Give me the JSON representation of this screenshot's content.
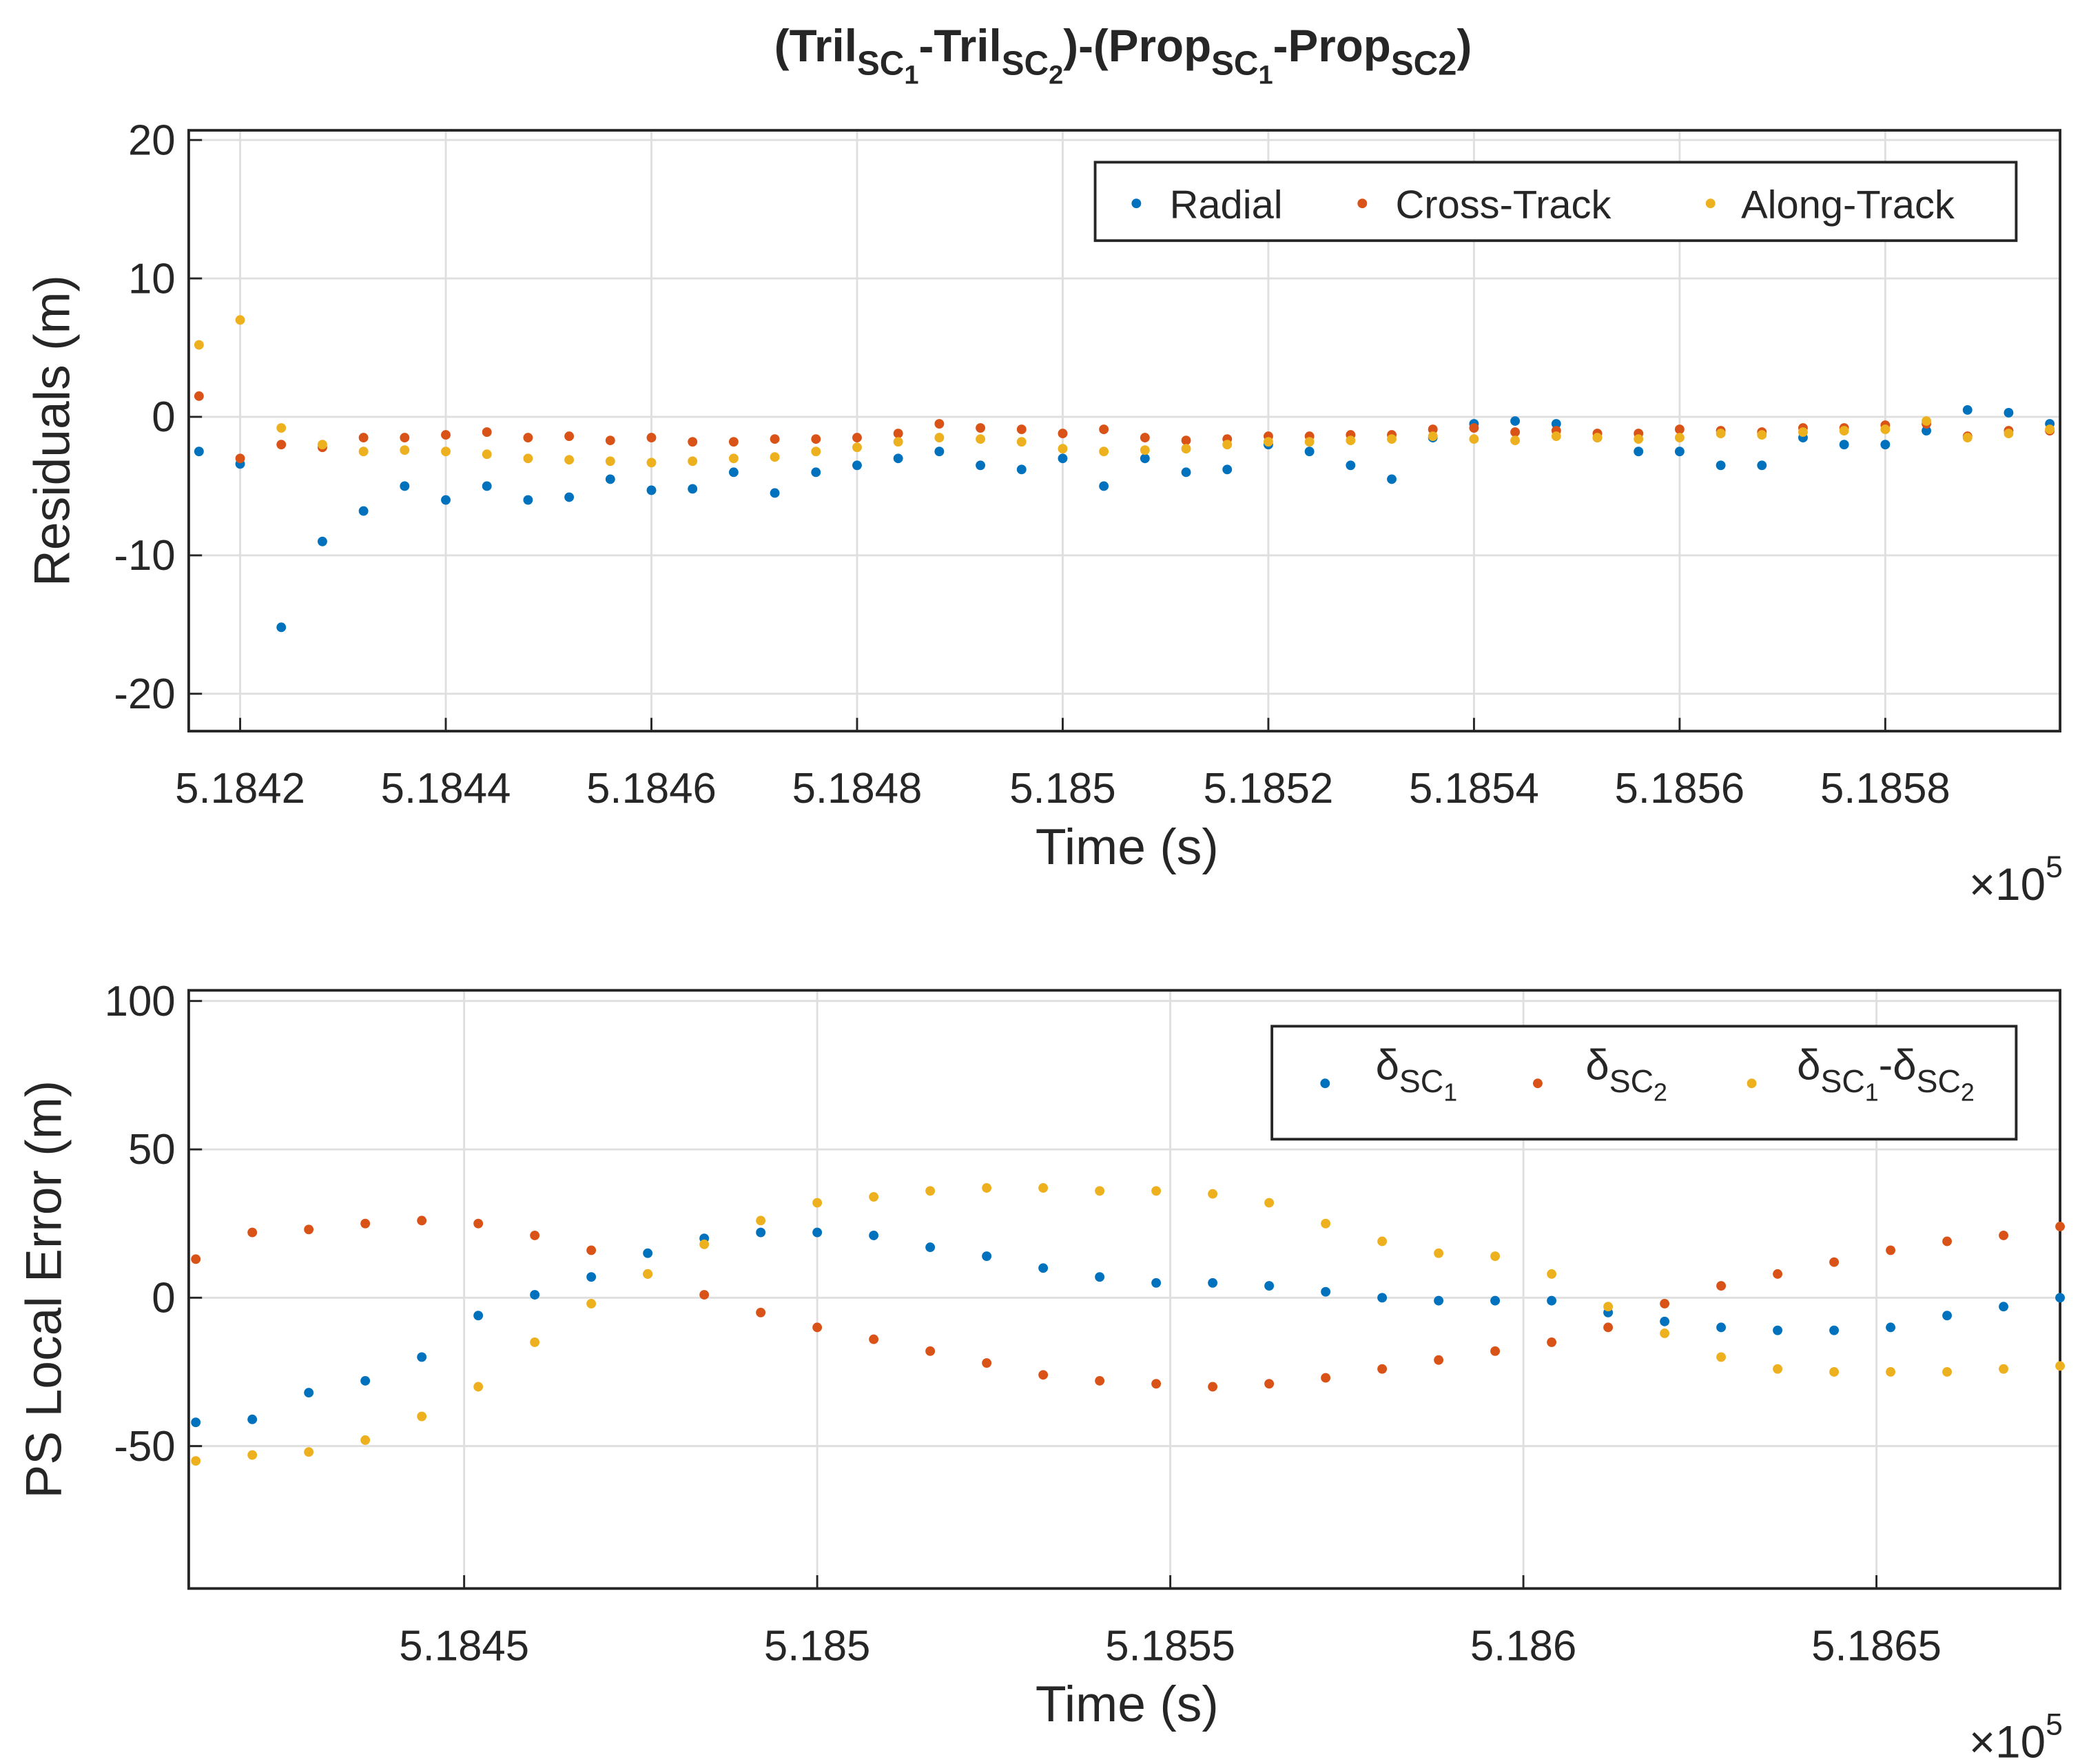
{
  "chart_data": [
    {
      "type": "scatter",
      "title": [
        "(Tril",
        "SC",
        "1",
        "-Tril",
        "SC",
        "2",
        ")-(Prop",
        "SC",
        "1",
        "-Prop",
        "SC2",
        ")"
      ],
      "xlabel": "Time (s)",
      "ylabel": "Residuals (m)",
      "x_exponent_label": [
        "×10",
        "5"
      ],
      "xlim": [
        518415,
        518597
      ],
      "ylim": [
        -22.7,
        20.7
      ],
      "xticks": [
        {
          "value": 518420,
          "label": "5.1842"
        },
        {
          "value": 518440,
          "label": "5.1844"
        },
        {
          "value": 518460,
          "label": "5.1846"
        },
        {
          "value": 518480,
          "label": "5.1848"
        },
        {
          "value": 518500,
          "label": "5.185"
        },
        {
          "value": 518520,
          "label": "5.1852"
        },
        {
          "value": 518540,
          "label": "5.1854"
        },
        {
          "value": 518560,
          "label": "5.1856"
        },
        {
          "value": 518580,
          "label": "5.1858"
        }
      ],
      "yticks": [
        -20,
        -10,
        0,
        10,
        20
      ],
      "grid": true,
      "legend": "northeast",
      "x": [
        518416,
        518420,
        518424,
        518428,
        518432,
        518436,
        518440,
        518444,
        518448,
        518452,
        518456,
        518460,
        518464,
        518468,
        518472,
        518476,
        518480,
        518484,
        518488,
        518492,
        518496,
        518500,
        518504,
        518508,
        518512,
        518516,
        518520,
        518524,
        518528,
        518532,
        518536,
        518540,
        518544,
        518548,
        518552,
        518556,
        518560,
        518564,
        518568,
        518572,
        518576,
        518580,
        518584,
        518588,
        518592,
        518596
      ],
      "series": [
        {
          "name": "Radial",
          "color": "#0072bd",
          "values": [
            -2.5,
            -3.4,
            -15.2,
            -9,
            -6.8,
            -5,
            -6,
            -5,
            -6,
            -5.8,
            -4.5,
            -5.3,
            -5.2,
            -4,
            -5.5,
            -4,
            -3.5,
            -3,
            -2.5,
            -3.5,
            -3.8,
            -3,
            -5,
            -3,
            -4,
            -3.8,
            -2,
            -2.5,
            -3.5,
            -4.5,
            -1.5,
            -0.5,
            -0.3,
            -0.5,
            -1.5,
            -2.5,
            -2.5,
            -3.5,
            -3.5,
            -1.5,
            -2,
            -2,
            -1,
            0.5,
            0.3,
            -0.5
          ]
        },
        {
          "name": "Cross-Track",
          "color": "#d95319",
          "values": [
            1.5,
            -3,
            -2,
            -2.2,
            -1.5,
            -1.5,
            -1.3,
            -1.1,
            -1.5,
            -1.4,
            -1.7,
            -1.5,
            -1.8,
            -1.8,
            -1.6,
            -1.6,
            -1.5,
            -1.2,
            -0.5,
            -0.8,
            -0.9,
            -1.2,
            -0.9,
            -1.5,
            -1.7,
            -1.6,
            -1.4,
            -1.4,
            -1.3,
            -1.3,
            -0.9,
            -0.8,
            -1.1,
            -1,
            -1.2,
            -1.2,
            -0.9,
            -1,
            -1.1,
            -0.8,
            -0.8,
            -0.6,
            -0.5,
            -1.4,
            -1,
            -1
          ]
        },
        {
          "name": "Along-Track",
          "color": "#edb120",
          "values": [
            5.2,
            7,
            -0.8,
            -2,
            -2.5,
            -2.4,
            -2.5,
            -2.7,
            -3,
            -3.1,
            -3.2,
            -3.3,
            -3.2,
            -3,
            -2.9,
            -2.5,
            -2.2,
            -1.8,
            -1.5,
            -1.6,
            -1.8,
            -2.3,
            -2.5,
            -2.4,
            -2.3,
            -2,
            -1.8,
            -1.8,
            -1.7,
            -1.6,
            -1.4,
            -1.6,
            -1.7,
            -1.4,
            -1.5,
            -1.6,
            -1.5,
            -1.2,
            -1.3,
            -1.1,
            -1,
            -0.9,
            -0.3,
            -1.5,
            -1.2,
            -0.9
          ]
        }
      ]
    },
    {
      "type": "scatter",
      "xlabel": "Time (s)",
      "ylabel": "PS Local Error (m)",
      "x_exponent_label": [
        "×10",
        "5"
      ],
      "xlim": [
        518411,
        518676
      ],
      "ylim": [
        -98,
        103.6
      ],
      "xticks": [
        {
          "value": 518450,
          "label": "5.1845"
        },
        {
          "value": 518500,
          "label": "5.185"
        },
        {
          "value": 518550,
          "label": "5.1855"
        },
        {
          "value": 518600,
          "label": "5.186"
        },
        {
          "value": 518650,
          "label": "5.1865"
        }
      ],
      "yticks": [
        -50,
        0,
        50,
        100
      ],
      "grid": true,
      "legend": "northeast",
      "x": [
        518412,
        518420,
        518428,
        518436,
        518444,
        518452,
        518460,
        518468,
        518476,
        518484,
        518492,
        518500,
        518508,
        518516,
        518524,
        518532,
        518540,
        518548,
        518556,
        518564,
        518572,
        518580,
        518588,
        518596,
        518604,
        518612,
        518620,
        518628,
        518636,
        518644,
        518652,
        518660,
        518668,
        518676
      ],
      "series": [
        {
          "name": [
            "δ",
            "SC",
            "1"
          ],
          "color": "#0072bd",
          "values": [
            -42,
            -41,
            -32,
            -28,
            -20,
            -6,
            1,
            7,
            15,
            20,
            22,
            22,
            21,
            17,
            14,
            10,
            7,
            5,
            5,
            4,
            2,
            0,
            -1,
            -1,
            -1,
            -5,
            -8,
            -10,
            -11,
            -11,
            -10,
            -6,
            -3,
            0
          ]
        },
        {
          "name": [
            "δ",
            "SC",
            "2"
          ],
          "color": "#d95319",
          "values": [
            13,
            22,
            23,
            25,
            26,
            25,
            21,
            16,
            8,
            1,
            -5,
            -10,
            -14,
            -18,
            -22,
            -26,
            -28,
            -29,
            -30,
            -29,
            -27,
            -24,
            -21,
            -18,
            -15,
            -10,
            -2,
            4,
            8,
            12,
            16,
            19,
            21,
            24
          ]
        },
        {
          "name": [
            "δ",
            "SC",
            "1",
            "-δ",
            "SC",
            "2"
          ],
          "color": "#edb120",
          "values": [
            -55,
            -53,
            -52,
            -48,
            -40,
            -30,
            -15,
            -2,
            8,
            18,
            26,
            32,
            34,
            36,
            37,
            37,
            36,
            36,
            35,
            32,
            25,
            19,
            15,
            14,
            8,
            -3,
            -12,
            -20,
            -24,
            -25,
            -25,
            -25,
            -24,
            -23
          ]
        }
      ]
    }
  ]
}
